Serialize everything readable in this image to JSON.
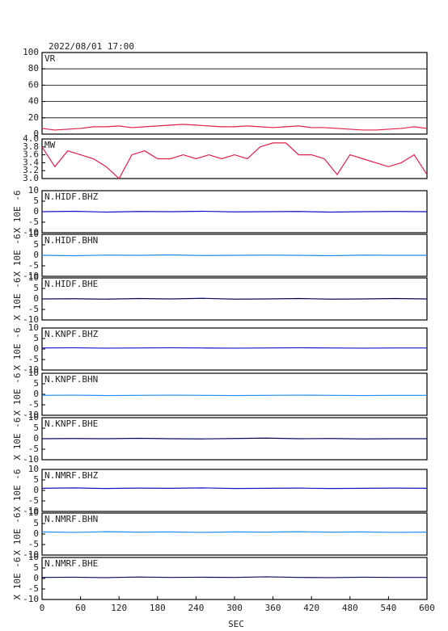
{
  "chart_data": [
    {
      "type": "line",
      "title": "2022/08/01 17:00",
      "xlim": [
        0,
        600
      ],
      "ylim": [
        0,
        100
      ],
      "yticks": [
        0,
        20,
        40,
        60,
        80,
        100
      ],
      "grid": true,
      "x": [
        0,
        20,
        40,
        60,
        80,
        100,
        120,
        140,
        160,
        180,
        200,
        220,
        240,
        260,
        280,
        300,
        320,
        340,
        360,
        380,
        400,
        420,
        440,
        460,
        480,
        500,
        520,
        540,
        560,
        580,
        600
      ],
      "series": [
        {
          "name": "VR",
          "color": "#e0204a",
          "values": [
            7,
            5,
            6,
            7,
            9,
            9,
            10,
            8,
            9,
            10,
            11,
            12,
            11,
            10,
            9,
            9,
            10,
            9,
            8,
            9,
            10,
            8,
            8,
            7,
            6,
            5,
            5,
            6,
            7,
            9,
            7
          ]
        }
      ]
    },
    {
      "type": "line",
      "xlim": [
        0,
        600
      ],
      "ylim": [
        3,
        4
      ],
      "yticks": [
        {
          "value": 3,
          "label": "3.0"
        },
        {
          "value": 3.2,
          "label": "3.2"
        },
        {
          "value": 3.4,
          "label": "3.4"
        },
        {
          "value": 3.6,
          "label": "3.6"
        },
        {
          "value": 3.8,
          "label": "3.8"
        },
        {
          "value": 4,
          "label": "4.0"
        }
      ],
      "grid": false,
      "x": [
        0,
        20,
        40,
        60,
        80,
        100,
        120,
        140,
        160,
        180,
        200,
        220,
        240,
        260,
        280,
        300,
        320,
        340,
        360,
        380,
        400,
        420,
        440,
        460,
        480,
        500,
        520,
        540,
        560,
        580,
        600
      ],
      "series": [
        {
          "name": "MW",
          "color": "#e0204a",
          "values": [
            3.8,
            3.3,
            3.7,
            3.6,
            3.5,
            3.3,
            3.0,
            3.6,
            3.7,
            3.5,
            3.5,
            3.6,
            3.5,
            3.6,
            3.5,
            3.6,
            3.5,
            3.8,
            3.9,
            3.9,
            3.6,
            3.6,
            3.5,
            3.1,
            3.6,
            3.5,
            3.4,
            3.3,
            3.4,
            3.6,
            3.1
          ]
        }
      ]
    },
    {
      "type": "line",
      "ylabel": "X 10E -6",
      "xlim": [
        0,
        600
      ],
      "ylim": [
        -10,
        10
      ],
      "yticks": [
        -10,
        -5,
        0,
        5,
        10
      ],
      "grid": false,
      "x": [
        0,
        50,
        100,
        150,
        200,
        250,
        300,
        350,
        400,
        450,
        500,
        550,
        600
      ],
      "series": [
        {
          "name": "N.HIDF.BHZ",
          "color": "#1414c8",
          "values": [
            0,
            0.2,
            -0.2,
            0.1,
            0,
            0.2,
            -0.1,
            0,
            0.1,
            -0.2,
            0,
            0.1,
            0
          ]
        }
      ]
    },
    {
      "type": "line",
      "ylabel": "X 10E -6",
      "xlim": [
        0,
        600
      ],
      "ylim": [
        -10,
        10
      ],
      "yticks": [
        -10,
        -5,
        0,
        5,
        10
      ],
      "grid": false,
      "x": [
        0,
        50,
        100,
        150,
        200,
        250,
        300,
        350,
        400,
        450,
        500,
        550,
        600
      ],
      "series": [
        {
          "name": "N.HIDF.BHN",
          "color": "#1e8cf0",
          "values": [
            0,
            -0.2,
            0.1,
            0,
            0.2,
            -0.1,
            0,
            0.1,
            0,
            -0.2,
            0.1,
            0,
            0
          ]
        }
      ]
    },
    {
      "type": "line",
      "ylabel": "X 10E -6",
      "xlim": [
        0,
        600
      ],
      "ylim": [
        -10,
        10
      ],
      "yticks": [
        -10,
        -5,
        0,
        5,
        10
      ],
      "grid": false,
      "x": [
        0,
        50,
        100,
        150,
        200,
        250,
        300,
        350,
        400,
        450,
        500,
        550,
        600
      ],
      "series": [
        {
          "name": "N.HIDF.BHE",
          "color": "#0a0a64",
          "values": [
            0,
            0.1,
            -0.1,
            0.2,
            0,
            0.3,
            -0.1,
            0,
            0.2,
            -0.1,
            0,
            0.2,
            0
          ]
        }
      ]
    },
    {
      "type": "line",
      "ylabel": "X 10E -6",
      "xlim": [
        0,
        600
      ],
      "ylim": [
        -10,
        10
      ],
      "yticks": [
        -10,
        -5,
        0,
        5,
        10
      ],
      "grid": false,
      "x": [
        0,
        50,
        100,
        150,
        200,
        250,
        300,
        350,
        400,
        450,
        500,
        550,
        600
      ],
      "series": [
        {
          "name": "N.KNPF.BHZ",
          "color": "#1414c8",
          "values": [
            0.5,
            0.6,
            0.4,
            0.5,
            0.6,
            0.5,
            0.4,
            0.5,
            0.6,
            0.5,
            0.4,
            0.5,
            0.5
          ]
        }
      ]
    },
    {
      "type": "line",
      "ylabel": "X 10E -6",
      "xlim": [
        0,
        600
      ],
      "ylim": [
        -10,
        10
      ],
      "yticks": [
        -10,
        -5,
        0,
        5,
        10
      ],
      "grid": false,
      "x": [
        0,
        50,
        100,
        150,
        200,
        250,
        300,
        350,
        400,
        450,
        500,
        550,
        600
      ],
      "series": [
        {
          "name": "N.KNPF.BHN",
          "color": "#1e8cf0",
          "values": [
            -0.5,
            -0.4,
            -0.6,
            -0.5,
            -0.4,
            -0.5,
            -0.6,
            -0.5,
            -0.4,
            -0.5,
            -0.6,
            -0.5,
            -0.5
          ]
        }
      ]
    },
    {
      "type": "line",
      "ylabel": "X 10E -6",
      "xlim": [
        0,
        600
      ],
      "ylim": [
        -10,
        10
      ],
      "yticks": [
        -10,
        -5,
        0,
        5,
        10
      ],
      "grid": false,
      "x": [
        0,
        50,
        100,
        150,
        200,
        250,
        300,
        350,
        400,
        450,
        500,
        550,
        600
      ],
      "series": [
        {
          "name": "N.KNPF.BHE",
          "color": "#0a0a64",
          "values": [
            0,
            0.1,
            0,
            0.2,
            0,
            -0.1,
            0.1,
            0.3,
            0,
            0.1,
            -0.1,
            0,
            0
          ]
        }
      ]
    },
    {
      "type": "line",
      "ylabel": "X 10E -6",
      "xlim": [
        0,
        600
      ],
      "ylim": [
        -10,
        10
      ],
      "yticks": [
        -10,
        -5,
        0,
        5,
        10
      ],
      "grid": false,
      "x": [
        0,
        50,
        100,
        150,
        200,
        250,
        300,
        350,
        400,
        450,
        500,
        550,
        600
      ],
      "series": [
        {
          "name": "N.NMRF.BHZ",
          "color": "#1414c8",
          "values": [
            1,
            1.2,
            0.9,
            1.1,
            1,
            1.2,
            0.9,
            1,
            1.1,
            0.9,
            1,
            1.1,
            1
          ]
        }
      ]
    },
    {
      "type": "line",
      "ylabel": "X 10E -6",
      "xlim": [
        0,
        600
      ],
      "ylim": [
        -10,
        10
      ],
      "yticks": [
        -10,
        -5,
        0,
        5,
        10
      ],
      "grid": false,
      "x": [
        0,
        50,
        100,
        150,
        200,
        250,
        300,
        350,
        400,
        450,
        500,
        550,
        600
      ],
      "series": [
        {
          "name": "N.NMRF.BHN",
          "color": "#1e8cf0",
          "values": [
            1,
            0.8,
            1.1,
            0.9,
            1,
            0.8,
            1,
            0.9,
            1.1,
            0.9,
            1,
            0.8,
            0.9
          ]
        }
      ]
    },
    {
      "type": "line",
      "ylabel": "X 10E -6",
      "xlabel": "SEC",
      "xlim": [
        0,
        600
      ],
      "xticks": [
        0,
        60,
        120,
        180,
        240,
        300,
        360,
        420,
        480,
        540,
        600
      ],
      "ylim": [
        -10,
        10
      ],
      "yticks": [
        -10,
        -5,
        0,
        5,
        10
      ],
      "grid": false,
      "x": [
        0,
        50,
        100,
        150,
        200,
        250,
        300,
        350,
        400,
        450,
        500,
        550,
        600
      ],
      "series": [
        {
          "name": "N.NMRF.BHE",
          "color": "#0a0a64",
          "values": [
            0.5,
            0.6,
            0.4,
            0.7,
            0.5,
            0.6,
            0.5,
            0.8,
            0.5,
            0.4,
            0.6,
            0.5,
            0.5
          ]
        }
      ]
    }
  ]
}
